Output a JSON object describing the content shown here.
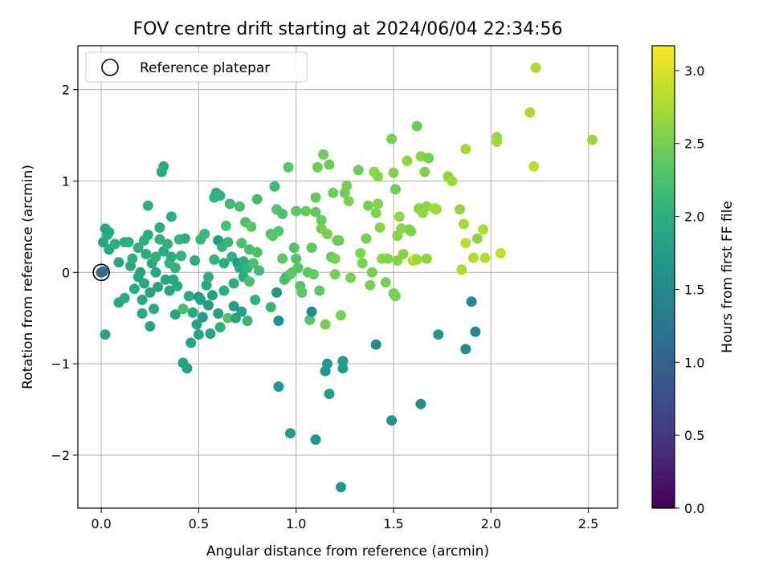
{
  "chart_data": {
    "type": "scatter",
    "title": "FOV centre drift starting at 2024/06/04 22:34:56",
    "xlabel": "Angular distance from reference (arcmin)",
    "ylabel": "Rotation from reference (arcmin)",
    "xlim": [
      -0.12,
      2.65
    ],
    "ylim": [
      -2.58,
      2.48
    ],
    "xticks": [
      0.0,
      0.5,
      1.0,
      1.5,
      2.0,
      2.5
    ],
    "xtick_labels": [
      "0.0",
      "0.5",
      "1.0",
      "1.5",
      "2.0",
      "2.5"
    ],
    "yticks": [
      -2,
      -1,
      0,
      1,
      2
    ],
    "ytick_labels": [
      "−2",
      "−1",
      "0",
      "1",
      "2"
    ],
    "grid": true,
    "legend": {
      "position": "top-left",
      "entries": [
        "Reference platepar"
      ]
    },
    "reference_point": {
      "x": 0.0,
      "y": 0.0
    },
    "colorbar": {
      "label": "Hours from first FF file",
      "min": 0.0,
      "max": 3.17,
      "ticks": [
        0.0,
        0.5,
        1.0,
        1.5,
        2.0,
        2.5,
        3.0
      ],
      "tick_labels": [
        "0.0",
        "0.5",
        "1.0",
        "1.5",
        "2.0",
        "2.5",
        "3.0"
      ],
      "colormap": "viridis"
    },
    "points": [
      [
        0.0,
        0.0,
        1.05
      ],
      [
        0.01,
        0.01,
        1.1
      ],
      [
        0.01,
        0.33,
        1.85
      ],
      [
        0.02,
        0.48,
        1.9
      ],
      [
        0.03,
        0.41,
        1.95
      ],
      [
        0.04,
        0.25,
        1.9
      ],
      [
        0.04,
        0.44,
        1.95
      ],
      [
        0.07,
        0.31,
        2.0
      ],
      [
        0.02,
        -0.68,
        1.85
      ],
      [
        0.09,
        0.11,
        1.9
      ],
      [
        0.09,
        -0.33,
        1.9
      ],
      [
        0.12,
        -0.28,
        1.95
      ],
      [
        0.12,
        0.33,
        1.95
      ],
      [
        0.14,
        0.33,
        2.0
      ],
      [
        0.15,
        0.07,
        1.9
      ],
      [
        0.16,
        0.15,
        2.0
      ],
      [
        0.17,
        -0.18,
        1.95
      ],
      [
        0.19,
        -0.05,
        1.9
      ],
      [
        0.19,
        0.27,
        2.0
      ],
      [
        0.2,
        0.0,
        1.85
      ],
      [
        0.21,
        -0.3,
        1.9
      ],
      [
        0.21,
        -0.45,
        1.9
      ],
      [
        0.22,
        0.35,
        2.0
      ],
      [
        0.22,
        -0.12,
        1.9
      ],
      [
        0.23,
        0.2,
        1.95
      ],
      [
        0.24,
        0.41,
        2.0
      ],
      [
        0.24,
        0.73,
        2.0
      ],
      [
        0.25,
        -0.22,
        1.85
      ],
      [
        0.25,
        -0.59,
        1.85
      ],
      [
        0.26,
        0.1,
        1.9
      ],
      [
        0.27,
        -0.4,
        1.95
      ],
      [
        0.28,
        0.0,
        1.9
      ],
      [
        0.28,
        0.17,
        2.05
      ],
      [
        0.29,
        -0.16,
        1.85
      ],
      [
        0.3,
        0.36,
        2.05
      ],
      [
        0.3,
        0.49,
        2.0
      ],
      [
        0.31,
        1.1,
        1.95
      ],
      [
        0.32,
        1.16,
        1.95
      ],
      [
        0.32,
        0.23,
        1.95
      ],
      [
        0.33,
        -0.08,
        1.9
      ],
      [
        0.34,
        0.31,
        2.05
      ],
      [
        0.35,
        0.1,
        2.1
      ],
      [
        0.35,
        -0.2,
        1.85
      ],
      [
        0.36,
        0.61,
        2.0
      ],
      [
        0.36,
        0.17,
        2.0
      ],
      [
        0.37,
        -0.08,
        1.9
      ],
      [
        0.38,
        -0.46,
        1.85
      ],
      [
        0.38,
        0.05,
        2.05
      ],
      [
        0.39,
        -0.15,
        1.9
      ],
      [
        0.4,
        0.36,
        2.1
      ],
      [
        0.41,
        0.18,
        2.05
      ],
      [
        0.42,
        -0.99,
        1.8
      ],
      [
        0.42,
        -0.4,
        2.2
      ],
      [
        0.43,
        0.37,
        2.0
      ],
      [
        0.44,
        -1.05,
        1.8
      ],
      [
        0.45,
        -0.26,
        1.9
      ],
      [
        0.46,
        -0.77,
        1.85
      ],
      [
        0.47,
        -0.44,
        1.9
      ],
      [
        0.48,
        0.13,
        2.0
      ],
      [
        0.49,
        -0.57,
        1.8
      ],
      [
        0.5,
        -0.27,
        1.7
      ],
      [
        0.5,
        -0.68,
        1.85
      ],
      [
        0.51,
        0.36,
        2.1
      ],
      [
        0.51,
        -0.3,
        1.8
      ],
      [
        0.52,
        -0.49,
        1.75
      ],
      [
        0.53,
        0.42,
        2.1
      ],
      [
        0.54,
        -0.14,
        1.85
      ],
      [
        0.55,
        -0.05,
        2.0
      ],
      [
        0.55,
        -0.36,
        1.75
      ],
      [
        0.56,
        -0.67,
        1.85
      ],
      [
        0.57,
        -0.25,
        1.8
      ],
      [
        0.58,
        0.14,
        2.05
      ],
      [
        0.58,
        0.82,
        2.05
      ],
      [
        0.59,
        0.87,
        2.0
      ],
      [
        0.6,
        0.35,
        1.7
      ],
      [
        0.6,
        -0.45,
        1.8
      ],
      [
        0.61,
        -0.6,
        2.0
      ],
      [
        0.61,
        0.84,
        2.05
      ],
      [
        0.62,
        0.28,
        2.05
      ],
      [
        0.63,
        0.1,
        2.0
      ],
      [
        0.63,
        -0.2,
        2.0
      ],
      [
        0.64,
        0.51,
        2.2
      ],
      [
        0.65,
        0.33,
        2.1
      ],
      [
        0.65,
        -0.5,
        2.3
      ],
      [
        0.66,
        0.75,
        2.15
      ],
      [
        0.67,
        0.17,
        2.05
      ],
      [
        0.68,
        -0.12,
        2.0
      ],
      [
        0.68,
        -0.37,
        1.8
      ],
      [
        0.69,
        -0.5,
        1.85
      ],
      [
        0.7,
        0.1,
        1.7
      ],
      [
        0.71,
        0.05,
        1.9
      ],
      [
        0.71,
        0.72,
        2.2
      ],
      [
        0.72,
        0.32,
        2.25
      ],
      [
        0.72,
        -0.43,
        1.8
      ],
      [
        0.73,
        -0.05,
        2.0
      ],
      [
        0.73,
        0.12,
        2.0
      ],
      [
        0.74,
        0.55,
        2.25
      ],
      [
        0.75,
        -0.53,
        2.1
      ],
      [
        0.75,
        0.05,
        2.05
      ],
      [
        0.76,
        -0.1,
        2.25
      ],
      [
        0.76,
        0.25,
        2.2
      ],
      [
        0.77,
        0.5,
        2.35
      ],
      [
        0.78,
        0.1,
        2.25
      ],
      [
        0.79,
        -0.3,
        2.05
      ],
      [
        0.8,
        0.8,
        2.2
      ],
      [
        0.8,
        0.22,
        2.25
      ],
      [
        0.81,
        0.02,
        2.15
      ],
      [
        0.87,
        -0.38,
        2.1
      ],
      [
        0.87,
        0.42,
        2.25
      ],
      [
        0.88,
        0.4,
        2.35
      ],
      [
        0.89,
        0.94,
        2.15
      ],
      [
        0.9,
        0.69,
        2.3
      ],
      [
        0.9,
        -0.22,
        1.65
      ],
      [
        0.91,
        -1.25,
        1.7
      ],
      [
        0.91,
        -0.53,
        1.6
      ],
      [
        0.91,
        0.45,
        2.3
      ],
      [
        0.93,
        0.64,
        2.25
      ],
      [
        0.93,
        0.15,
        2.35
      ],
      [
        0.94,
        -0.08,
        2.25
      ],
      [
        0.95,
        -0.05,
        2.15
      ],
      [
        0.96,
        1.15,
        2.35
      ],
      [
        0.97,
        -1.76,
        1.75
      ],
      [
        0.97,
        -0.02,
        2.3
      ],
      [
        0.98,
        0.0,
        2.35
      ],
      [
        0.99,
        0.27,
        2.3
      ],
      [
        1.0,
        0.15,
        2.3
      ],
      [
        1.0,
        0.67,
        2.35
      ],
      [
        1.01,
        0.05,
        2.3
      ],
      [
        1.02,
        -0.15,
        2.3
      ],
      [
        1.03,
        -0.22,
        2.35
      ],
      [
        1.05,
        0.67,
        2.4
      ],
      [
        1.06,
        0.0,
        2.35
      ],
      [
        1.07,
        -0.52,
        2.3
      ],
      [
        1.08,
        -0.43,
        1.55
      ],
      [
        1.08,
        0.27,
        2.35
      ],
      [
        1.09,
        -0.02,
        2.4
      ],
      [
        1.1,
        -1.83,
        1.6
      ],
      [
        1.1,
        0.66,
        2.4
      ],
      [
        1.1,
        0.82,
        2.4
      ],
      [
        1.11,
        1.15,
        2.45
      ],
      [
        1.12,
        -0.2,
        2.35
      ],
      [
        1.13,
        0.57,
        2.4
      ],
      [
        1.13,
        0.48,
        2.5
      ],
      [
        1.14,
        1.29,
        2.45
      ],
      [
        1.15,
        -0.57,
        2.5
      ],
      [
        1.15,
        -1.08,
        1.65
      ],
      [
        1.16,
        -1.0,
        1.7
      ],
      [
        1.16,
        0.42,
        2.5
      ],
      [
        1.17,
        -1.33,
        1.75
      ],
      [
        1.17,
        1.18,
        2.45
      ],
      [
        1.18,
        0.17,
        2.45
      ],
      [
        1.19,
        0.87,
        2.45
      ],
      [
        1.2,
        0.15,
        2.5
      ],
      [
        1.2,
        -0.02,
        2.5
      ],
      [
        1.21,
        0.35,
        2.5
      ],
      [
        1.22,
        0.35,
        2.45
      ],
      [
        1.23,
        -2.35,
        1.7
      ],
      [
        1.23,
        -0.47,
        2.5
      ],
      [
        1.24,
        -0.97,
        1.75
      ],
      [
        1.24,
        -1.05,
        1.75
      ],
      [
        1.25,
        0.87,
        2.45
      ],
      [
        1.26,
        0.95,
        2.5
      ],
      [
        1.27,
        0.78,
        2.55
      ],
      [
        1.28,
        -0.06,
        2.5
      ],
      [
        1.32,
        1.12,
        2.45
      ],
      [
        1.33,
        0.21,
        2.55
      ],
      [
        1.34,
        0.1,
        2.55
      ],
      [
        1.36,
        0.37,
        2.5
      ],
      [
        1.37,
        0.73,
        2.5
      ],
      [
        1.38,
        -0.14,
        2.5
      ],
      [
        1.39,
        0.0,
        2.5
      ],
      [
        1.4,
        1.1,
        2.6
      ],
      [
        1.41,
        0.65,
        2.55
      ],
      [
        1.41,
        -0.79,
        1.55
      ],
      [
        1.42,
        0.75,
        2.55
      ],
      [
        1.42,
        1.05,
        2.6
      ],
      [
        1.43,
        0.49,
        2.6
      ],
      [
        1.44,
        0.15,
        2.6
      ],
      [
        1.46,
        -0.11,
        2.5
      ],
      [
        1.47,
        0.15,
        2.55
      ],
      [
        1.49,
        1.46,
        2.5
      ],
      [
        1.49,
        -1.62,
        1.6
      ],
      [
        1.5,
        1.09,
        2.55
      ],
      [
        1.5,
        -0.23,
        2.5
      ],
      [
        1.51,
        -0.26,
        2.5
      ],
      [
        1.51,
        0.91,
        2.45
      ],
      [
        1.52,
        0.4,
        2.6
      ],
      [
        1.52,
        0.13,
        2.6
      ],
      [
        1.53,
        0.61,
        2.65
      ],
      [
        1.54,
        0.48,
        2.65
      ],
      [
        1.55,
        0.2,
        2.6
      ],
      [
        1.57,
        1.22,
        2.6
      ],
      [
        1.58,
        0.47,
        2.6
      ],
      [
        1.59,
        0.45,
        2.55
      ],
      [
        1.6,
        0.13,
        2.65
      ],
      [
        1.61,
        0.15,
        3.05
      ],
      [
        1.62,
        1.6,
        2.45
      ],
      [
        1.62,
        0.14,
        2.7
      ],
      [
        1.63,
        0.7,
        2.6
      ],
      [
        1.64,
        -1.44,
        1.55
      ],
      [
        1.64,
        1.27,
        2.6
      ],
      [
        1.65,
        0.65,
        2.65
      ],
      [
        1.66,
        1.1,
        2.55
      ],
      [
        1.67,
        0.15,
        2.6
      ],
      [
        1.67,
        0.72,
        2.6
      ],
      [
        1.68,
        1.25,
        2.5
      ],
      [
        1.71,
        0.7,
        2.75
      ],
      [
        1.72,
        0.69,
        2.7
      ],
      [
        1.73,
        -0.68,
        1.6
      ],
      [
        1.78,
        1.05,
        2.65
      ],
      [
        1.8,
        1.0,
        2.7
      ],
      [
        1.84,
        0.69,
        2.6
      ],
      [
        1.85,
        0.03,
        2.75
      ],
      [
        1.86,
        0.53,
        2.75
      ],
      [
        1.87,
        -0.84,
        1.5
      ],
      [
        1.87,
        1.35,
        2.7
      ],
      [
        1.87,
        0.32,
        2.85
      ],
      [
        1.9,
        -0.32,
        1.5
      ],
      [
        1.91,
        0.16,
        2.8
      ],
      [
        1.92,
        -0.65,
        1.5
      ],
      [
        1.93,
        0.37,
        2.6
      ],
      [
        1.96,
        0.47,
        2.75
      ],
      [
        1.97,
        0.16,
        2.8
      ],
      [
        2.03,
        1.48,
        2.65
      ],
      [
        2.03,
        1.43,
        2.7
      ],
      [
        2.05,
        0.21,
        2.85
      ],
      [
        2.2,
        1.75,
        2.75
      ],
      [
        2.22,
        1.16,
        2.85
      ],
      [
        2.23,
        2.24,
        2.8
      ],
      [
        2.52,
        1.45,
        2.7
      ]
    ]
  }
}
